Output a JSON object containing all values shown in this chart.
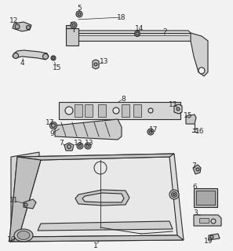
{
  "bg": "#f2f2f2",
  "lc": "#2a2a2a",
  "lw": 0.8,
  "fs": 6.5,
  "fig_w": 2.97,
  "fig_h": 3.2,
  "dpi": 100
}
